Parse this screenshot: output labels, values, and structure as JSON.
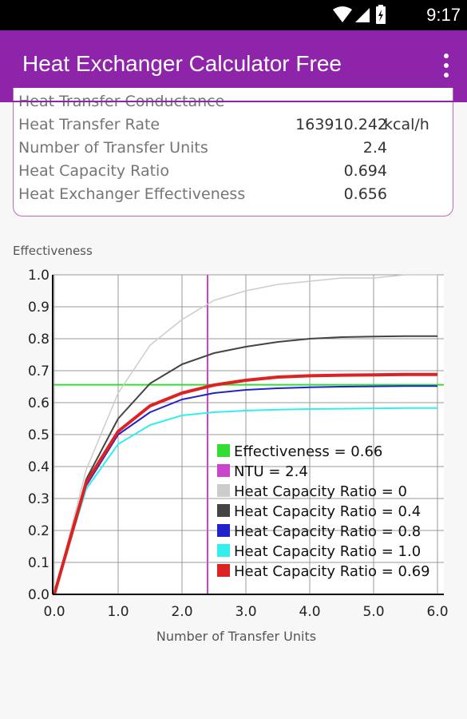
{
  "status": {
    "time": "9:17"
  },
  "app": {
    "title": "Heat Exchanger Calculator Free"
  },
  "results": [
    {
      "label": "Heat Transfer Conductance",
      "value": "",
      "unit": "",
      "clipped": true
    },
    {
      "label": "Heat Transfer Rate",
      "value": "163910.242",
      "unit": "kcal/h"
    },
    {
      "label": "Number of Transfer Units",
      "value": "2.4",
      "unit": ""
    },
    {
      "label": "Heat Capacity Ratio",
      "value": "0.694",
      "unit": ""
    },
    {
      "label": "Heat Exchanger Effectiveness",
      "value": "0.656",
      "unit": ""
    }
  ],
  "chart_data": {
    "type": "line",
    "title": "",
    "ylabel": "Effectiveness",
    "xlabel": "Number of Transfer Units",
    "xlim": [
      0,
      6
    ],
    "ylim": [
      0,
      1
    ],
    "x_ticks": [
      "0.0",
      "1.0",
      "2.0",
      "3.0",
      "4.0",
      "5.0",
      "6.0"
    ],
    "y_ticks": [
      "0.0",
      "0.1",
      "0.2",
      "0.3",
      "0.4",
      "0.5",
      "0.6",
      "0.7",
      "0.8",
      "0.9",
      "1.0"
    ],
    "grid": true,
    "legend_position": "bottom-right",
    "markers": {
      "effectiveness": {
        "name": "Effectiveness = 0.66",
        "value": 0.656,
        "color": "#33dd33"
      },
      "ntu": {
        "name": "NTU = 2.4",
        "value": 2.4,
        "color": "#cc44cc"
      }
    },
    "series": [
      {
        "name": "Heat Capacity Ratio = 0",
        "color": "#cccccc",
        "width": 1.5,
        "x": [
          0,
          0.5,
          1,
          1.5,
          2,
          2.5,
          3,
          3.5,
          4,
          4.5,
          5,
          5.5,
          6
        ],
        "y": [
          0,
          0.39,
          0.63,
          0.78,
          0.86,
          0.92,
          0.95,
          0.97,
          0.98,
          0.99,
          0.99,
          1.0,
          1.0
        ]
      },
      {
        "name": "Heat Capacity Ratio = 0.4",
        "color": "#444444",
        "width": 2,
        "x": [
          0,
          0.5,
          1,
          1.5,
          2,
          2.5,
          3,
          3.5,
          4,
          4.5,
          5,
          5.5,
          6
        ],
        "y": [
          0,
          0.36,
          0.55,
          0.66,
          0.72,
          0.755,
          0.775,
          0.79,
          0.8,
          0.805,
          0.807,
          0.808,
          0.808
        ]
      },
      {
        "name": "Heat Capacity Ratio = 0.8",
        "color": "#2222cc",
        "width": 2,
        "x": [
          0,
          0.5,
          1,
          1.5,
          2,
          2.5,
          3,
          3.5,
          4,
          4.5,
          5,
          5.5,
          6
        ],
        "y": [
          0,
          0.34,
          0.5,
          0.57,
          0.61,
          0.63,
          0.64,
          0.645,
          0.648,
          0.65,
          0.651,
          0.652,
          0.652
        ]
      },
      {
        "name": "Heat Capacity Ratio = 1.0",
        "color": "#33eeee",
        "width": 2,
        "x": [
          0,
          0.5,
          1,
          1.5,
          2,
          2.5,
          3,
          3.5,
          4,
          4.5,
          5,
          5.5,
          6
        ],
        "y": [
          0,
          0.33,
          0.47,
          0.53,
          0.56,
          0.57,
          0.575,
          0.578,
          0.58,
          0.581,
          0.582,
          0.583,
          0.583
        ]
      },
      {
        "name": "Heat Capacity Ratio = 0.69",
        "color": "#dd2222",
        "width": 4,
        "x": [
          0,
          0.5,
          1,
          1.5,
          2,
          2.5,
          3,
          3.5,
          4,
          4.5,
          5,
          5.5,
          6
        ],
        "y": [
          0,
          0.35,
          0.51,
          0.59,
          0.63,
          0.655,
          0.67,
          0.68,
          0.684,
          0.686,
          0.687,
          0.688,
          0.688
        ]
      }
    ]
  }
}
